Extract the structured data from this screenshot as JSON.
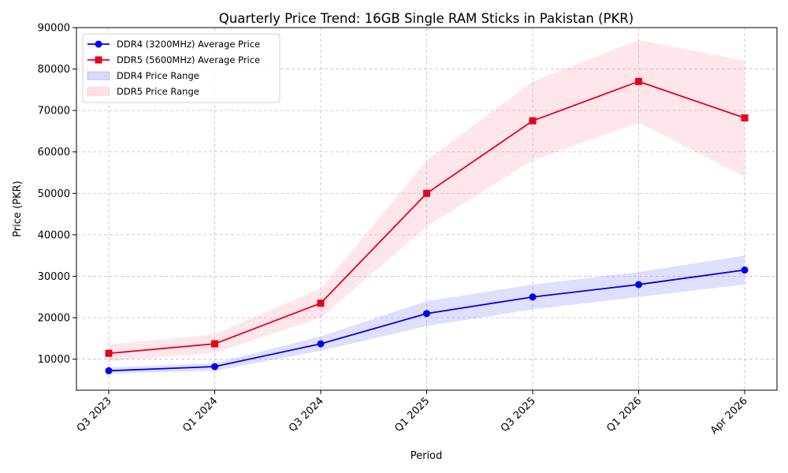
{
  "chart_data": {
    "type": "line",
    "title": "Quarterly Price Trend: 16GB Single RAM Sticks in Pakistan (PKR)",
    "xlabel": "Period",
    "ylabel": "Price (PKR)",
    "categories": [
      "Q3 2023",
      "Q1 2024",
      "Q3 2024",
      "Q1 2025",
      "Q3 2025",
      "Q1 2026",
      "Apr 2026"
    ],
    "ylim": [
      2500,
      90000
    ],
    "yticks": [
      10000,
      20000,
      30000,
      40000,
      50000,
      60000,
      70000,
      80000,
      90000
    ],
    "grid": true,
    "legend_position": "top-left",
    "series": [
      {
        "name": "DDR4 (3200MHz) Average Price",
        "color": "#0000ee",
        "marker": "circle",
        "values": [
          7200,
          8200,
          13700,
          21000,
          25000,
          28000,
          31500
        ]
      },
      {
        "name": "DDR5 (5600MHz) Average Price",
        "color": "#e8001c",
        "marker": "square",
        "values": [
          11400,
          13700,
          23500,
          50000,
          67500,
          77000,
          68200
        ]
      }
    ],
    "ranges": [
      {
        "name": "DDR4 Price Range",
        "color": "#8080ff",
        "low": [
          6500,
          7200,
          12000,
          18000,
          22000,
          25000,
          28000
        ],
        "high": [
          8000,
          9000,
          15500,
          24000,
          28000,
          31000,
          35000
        ]
      },
      {
        "name": "DDR5 Price Range",
        "color": "#ff9aaa",
        "low": [
          9500,
          11500,
          20000,
          42000,
          58000,
          67000,
          54000
        ],
        "high": [
          13500,
          16000,
          27000,
          58000,
          77000,
          87000,
          82000
        ]
      }
    ]
  }
}
